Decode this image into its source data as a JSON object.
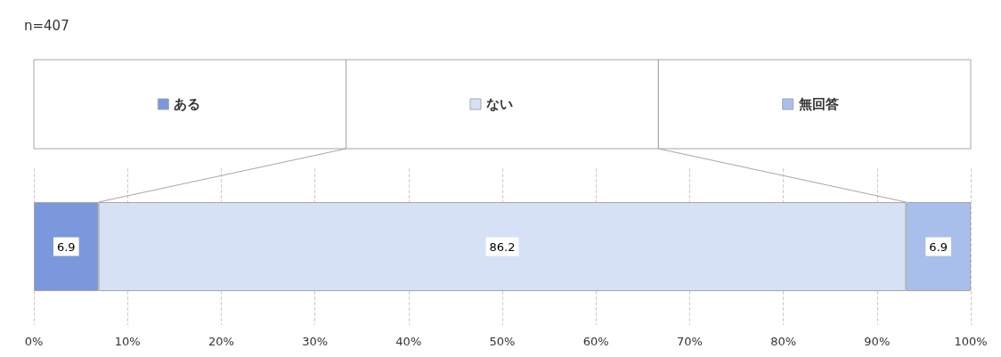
{
  "chart_data": {
    "type": "bar",
    "orientation": "horizontal",
    "stacked": true,
    "title": "n=407",
    "categories": [
      null
    ],
    "series": [
      {
        "name": "ある",
        "color": "#7b98dc",
        "values": [
          6.9
        ]
      },
      {
        "name": "ない",
        "color": "#d6e1f5",
        "values": [
          86.2
        ]
      },
      {
        "name": "無回答",
        "color": "#a9bfeb",
        "values": [
          6.9
        ]
      }
    ],
    "xlim": [
      0,
      100
    ],
    "xticks": [
      {
        "value": 0,
        "label": "0%"
      },
      {
        "value": 10,
        "label": "10%"
      },
      {
        "value": 20,
        "label": "20%"
      },
      {
        "value": 30,
        "label": "30%"
      },
      {
        "value": 40,
        "label": "40%"
      },
      {
        "value": 50,
        "label": "50%"
      },
      {
        "value": 60,
        "label": "60%"
      },
      {
        "value": 70,
        "label": "70%"
      },
      {
        "value": 80,
        "label": "80%"
      },
      {
        "value": 90,
        "label": "90%"
      },
      {
        "value": 100,
        "label": "100%"
      }
    ],
    "grid": "x",
    "legend": "top",
    "data_labels": true
  }
}
